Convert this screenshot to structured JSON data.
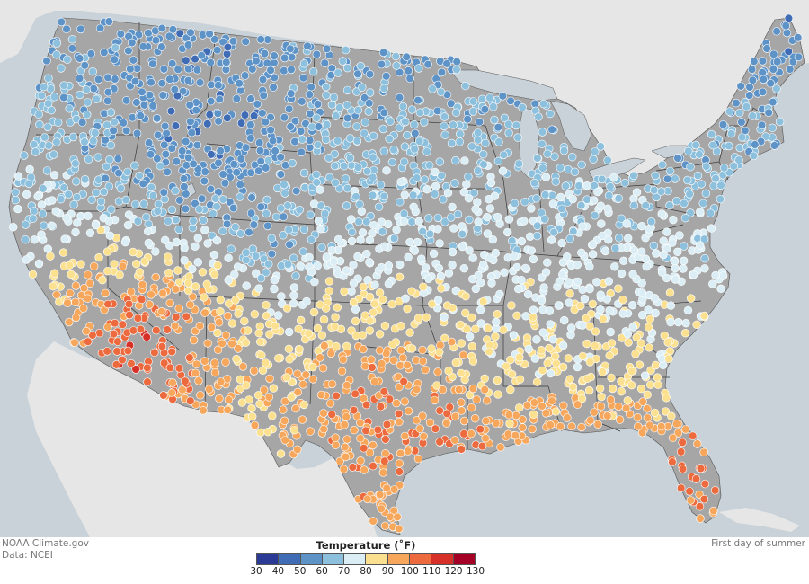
{
  "credit": {
    "source": "NOAA Climate.gov",
    "data": "Data: NCEI"
  },
  "date_label": "First day of summer",
  "legend": {
    "title": "Temperature (˚F)",
    "ticks": [
      "30",
      "40",
      "50",
      "60",
      "70",
      "80",
      "90",
      "100",
      "110",
      "120",
      "130"
    ],
    "colors": [
      "#2b3a94",
      "#3f6cb5",
      "#5e93c8",
      "#8dc0dd",
      "#dbeef5",
      "#fbe08f",
      "#f6a75c",
      "#ec6a3d",
      "#d63028",
      "#a50026"
    ]
  },
  "map": {
    "land_color": "#a6a6a6",
    "water_color": "#c8d2d8",
    "neighbor_color": "#e6e6e6",
    "border_color": "#3a3a3a",
    "station_outline": "#ffffff"
  }
}
